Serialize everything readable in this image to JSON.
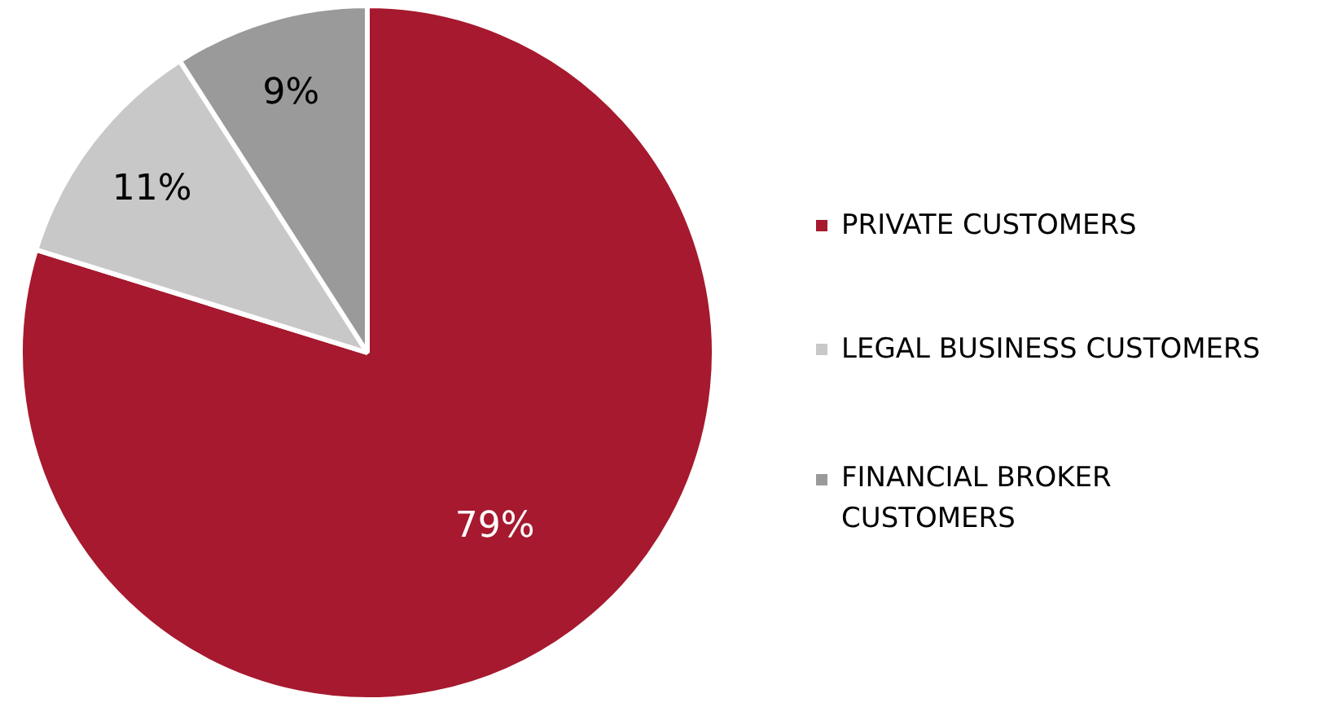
{
  "chart_data": {
    "type": "pie",
    "categories": [
      "PRIVATE CUSTOMERS",
      "LEGAL BUSINESS CUSTOMERS",
      "FINANCIAL BROKER CUSTOMERS"
    ],
    "values": [
      79,
      11,
      9
    ],
    "colors": [
      "#a6192e",
      "#c8c8c8",
      "#9a9a9a"
    ],
    "value_labels": [
      "79%",
      "11%",
      "9%"
    ],
    "legend": "right"
  }
}
